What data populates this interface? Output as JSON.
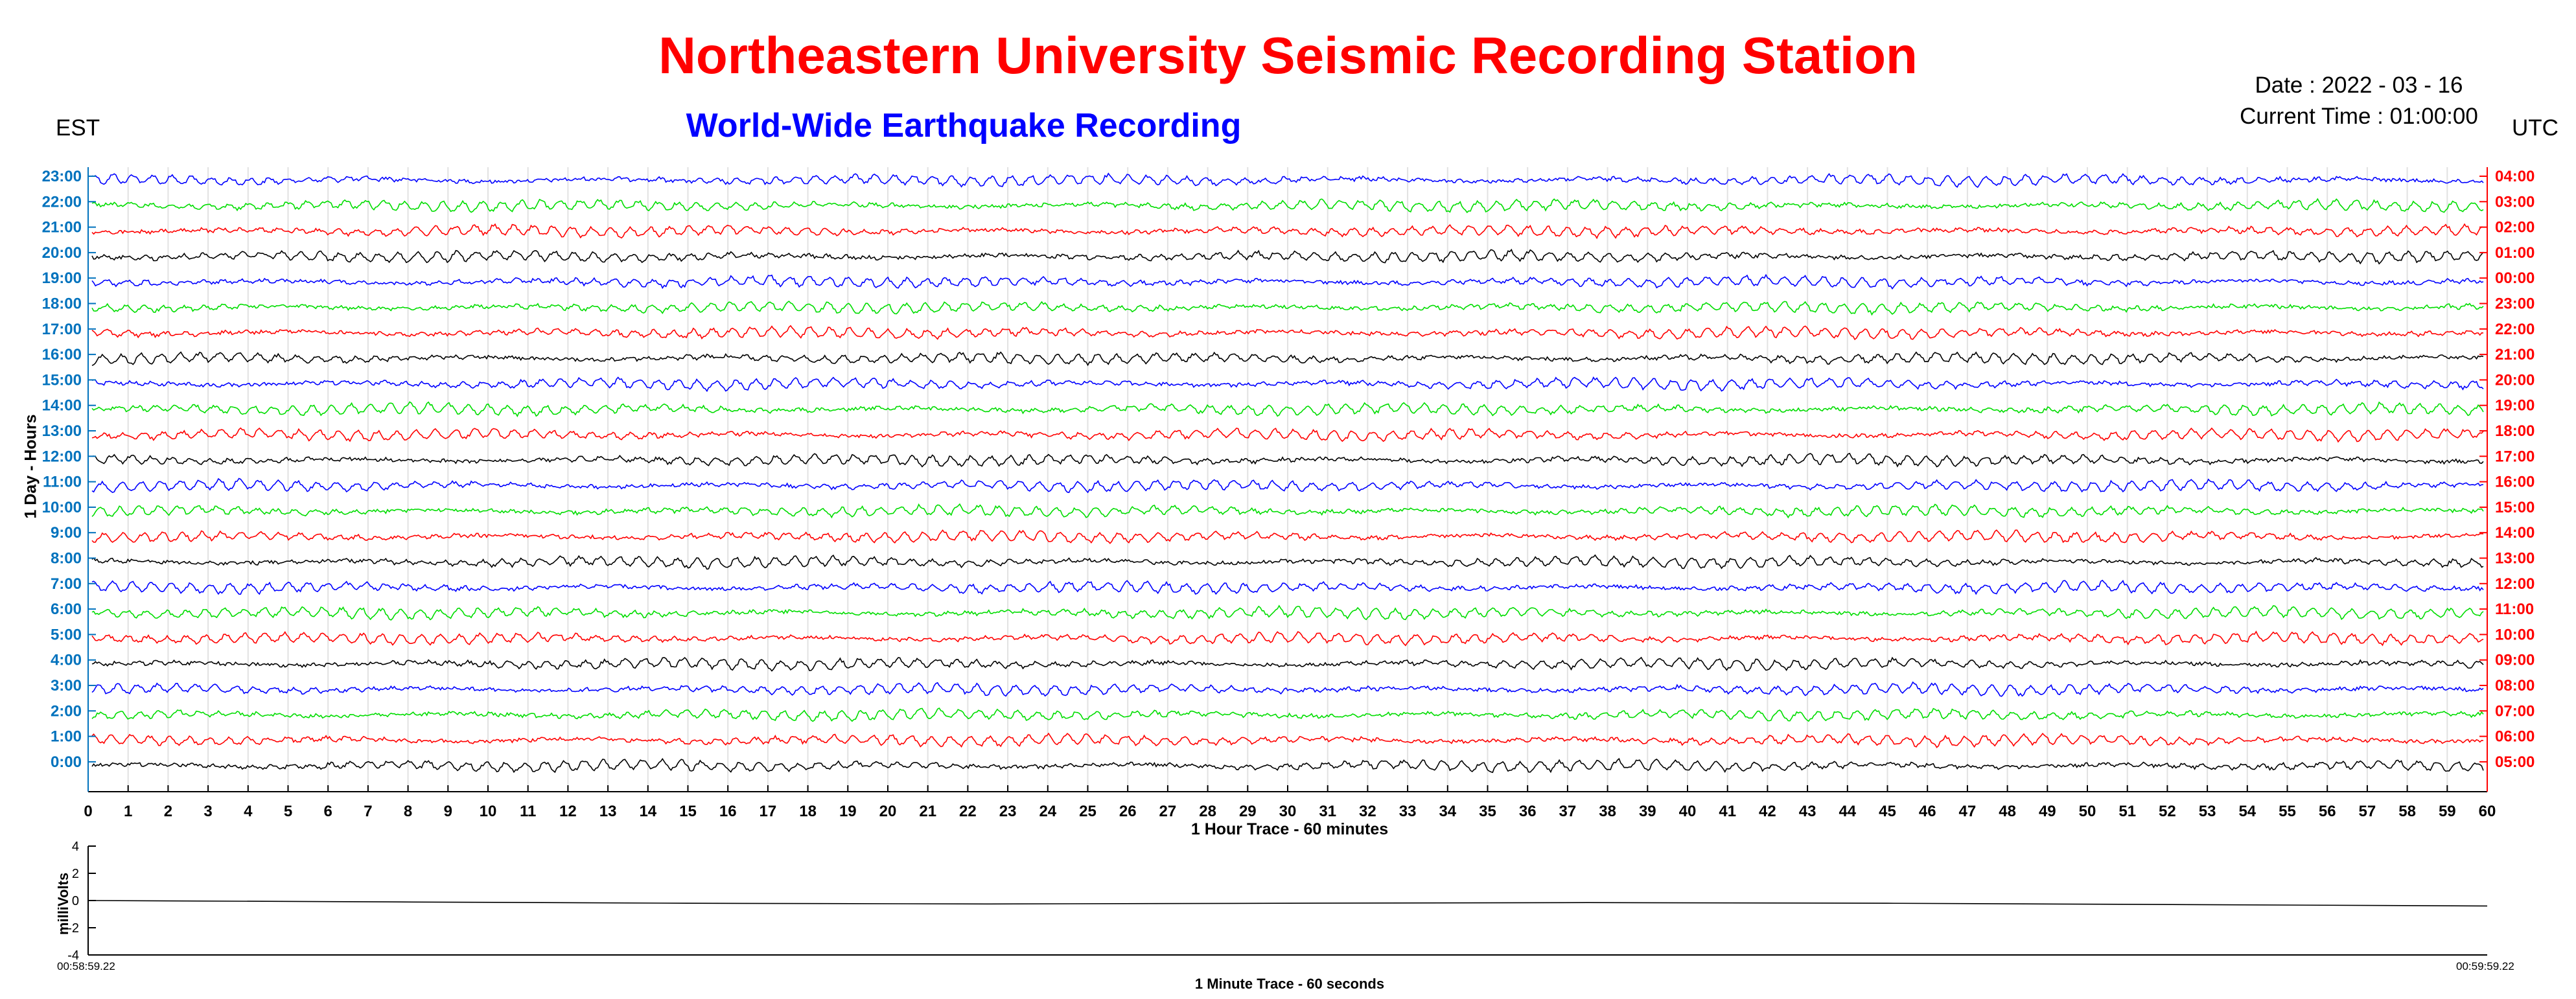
{
  "title": "Northeastern University Seismic Recording Station",
  "subtitle": "World-Wide Earthquake Recording",
  "date_text": "Date : 2022 - 03 - 16",
  "current_time_text": "Current Time : 01:00:00",
  "left_axis_label": "EST",
  "right_axis_label": "UTC",
  "colors": {
    "title": "#ff0000",
    "subtitle": "#0000ff",
    "est_ticks": "#0072bd",
    "utc_ticks": "#ff0000",
    "trace_cycle": [
      "#000000",
      "#ff0000",
      "#00dd00",
      "#0000ff"
    ]
  },
  "chart_data": [
    {
      "type": "line",
      "title": "Northeastern University Seismic Recording Station",
      "subtitle": "World-Wide Earthquake Recording",
      "xlabel": "1 Hour Trace - 60 minutes",
      "ylabel": "1 Day - Hours",
      "xlim": [
        0,
        60
      ],
      "x_ticks": [
        "0",
        "1",
        "2",
        "3",
        "4",
        "5",
        "6",
        "7",
        "8",
        "9",
        "10",
        "11",
        "12",
        "13",
        "14",
        "15",
        "16",
        "17",
        "18",
        "19",
        "20",
        "21",
        "22",
        "23",
        "24",
        "25",
        "26",
        "27",
        "28",
        "29",
        "30",
        "31",
        "32",
        "33",
        "34",
        "35",
        "36",
        "37",
        "38",
        "39",
        "40",
        "41",
        "42",
        "43",
        "44",
        "45",
        "46",
        "47",
        "48",
        "49",
        "50",
        "51",
        "52",
        "53",
        "54",
        "55",
        "56",
        "57",
        "58",
        "59",
        "60"
      ],
      "y_ticks_left": [
        "0:00",
        "1:00",
        "2:00",
        "3:00",
        "4:00",
        "5:00",
        "6:00",
        "7:00",
        "8:00",
        "9:00",
        "10:00",
        "11:00",
        "12:00",
        "13:00",
        "14:00",
        "15:00",
        "16:00",
        "17:00",
        "18:00",
        "19:00",
        "20:00",
        "21:00",
        "22:00",
        "23:00"
      ],
      "y_ticks_right": [
        "05:00",
        "06:00",
        "07:00",
        "08:00",
        "09:00",
        "10:00",
        "11:00",
        "12:00",
        "13:00",
        "14:00",
        "15:00",
        "16:00",
        "17:00",
        "18:00",
        "19:00",
        "20:00",
        "21:00",
        "22:00",
        "23:00",
        "00:00",
        "01:00",
        "02:00",
        "03:00",
        "04:00"
      ],
      "series_color_cycle": [
        "black",
        "red",
        "green",
        "blue"
      ],
      "grid": true
    },
    {
      "type": "line",
      "xlabel": "1 Minute Trace  - 60 seconds",
      "ylabel": "milliVolts",
      "ylim": [
        -4,
        4
      ],
      "y_ticks": [
        "4",
        "2",
        "0",
        "-2",
        "-4"
      ],
      "x_start_label": "00:58:59.22",
      "x_end_label": "00:59:59.22",
      "series": [
        {
          "values": [
            0.0,
            -0.1,
            -0.2,
            -0.25,
            -0.2,
            -0.15,
            -0.2,
            -0.3,
            -0.4
          ]
        }
      ]
    }
  ]
}
